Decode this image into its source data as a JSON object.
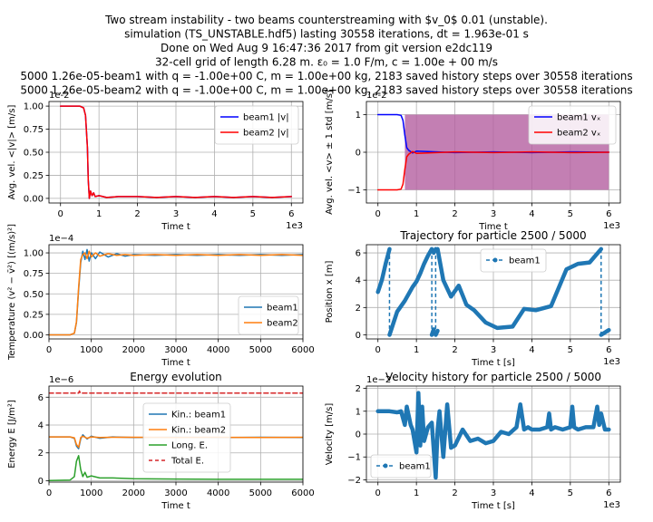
{
  "suptitle": [
    "Two stream instability - two beams counterstreaming with $v_0$ 0.01 (unstable).",
    "simulation (TS_UNSTABLE.hdf5) lasting 30558 iterations, dt = 1.963e-01 s",
    "Done on Wed Aug  9 16:47:36 2017 from git version e2dc119",
    "32-cell grid of length 6.28 m. ε₀ = 1.0 F/m, c = 1.00e + 00 m/s",
    "5000 1.26e-05-beam1 with q = -1.00e+00 C, m = 1.00e+00 kg, 2183 saved history steps over 30558 iterations",
    "5000 1.26e-05-beam2 with q = -1.00e+00 C, m = 1.00e+00 kg, 2183 saved history steps over 30558 iterations"
  ],
  "colors": {
    "beam1_line": "#0000ff",
    "beam2_line": "#ff0000",
    "tab_blue": "#1f77b4",
    "tab_orange": "#ff7f0e",
    "tab_green": "#2ca02c",
    "tab_red": "#d62728",
    "band_purple": "#b45fa0",
    "grid": "#b0b0b0"
  },
  "chart_data": [
    {
      "id": "p1",
      "type": "line",
      "title": "",
      "xlabel": "Time t",
      "ylabel": "Avg. vel. <|v|> [m/s]",
      "offset_y": "1e-2",
      "offset_x": "1e3",
      "xlim": [
        -0.3,
        6.3
      ],
      "ylim": [
        -0.05,
        1.05
      ],
      "xticks": [
        0,
        1,
        2,
        3,
        4,
        5,
        6
      ],
      "yticks": [
        0.0,
        0.25,
        0.5,
        0.75,
        1.0
      ],
      "ytick_labels": [
        "0.00",
        "0.25",
        "0.50",
        "0.75",
        "1.00"
      ],
      "grid": true,
      "legend": "top-right",
      "series": [
        {
          "name": "beam1 |v|",
          "color": "#0000ff",
          "x": [
            0,
            0.5,
            0.6,
            0.65,
            0.7,
            0.72,
            0.75,
            0.78,
            0.82,
            0.86,
            0.9,
            1.0,
            1.2,
            1.5,
            2.0,
            2.5,
            3.0,
            3.5,
            4.0,
            4.5,
            5.0,
            5.5,
            6.0
          ],
          "y": [
            1.0,
            1.0,
            0.98,
            0.9,
            0.55,
            0.2,
            0.0,
            0.08,
            0.03,
            0.06,
            0.02,
            0.03,
            0.01,
            0.02,
            0.02,
            0.01,
            0.02,
            0.01,
            0.02,
            0.01,
            0.02,
            0.01,
            0.02
          ]
        },
        {
          "name": "beam2 |v|",
          "color": "#ff0000",
          "x": [
            0,
            0.5,
            0.6,
            0.65,
            0.7,
            0.72,
            0.75,
            0.78,
            0.82,
            0.86,
            0.9,
            1.0,
            1.2,
            1.5,
            2.0,
            2.5,
            3.0,
            3.5,
            4.0,
            4.5,
            5.0,
            5.5,
            6.0
          ],
          "y": [
            1.0,
            1.0,
            0.98,
            0.9,
            0.55,
            0.2,
            0.0,
            0.08,
            0.03,
            0.06,
            0.02,
            0.03,
            0.01,
            0.02,
            0.02,
            0.01,
            0.02,
            0.01,
            0.02,
            0.01,
            0.02,
            0.01,
            0.02
          ]
        }
      ]
    },
    {
      "id": "p2",
      "type": "line",
      "title": "",
      "xlabel": "Time t",
      "ylabel": "Avg. vel. <v> ± 1 std [m/s]",
      "offset_y": "1e-2",
      "offset_x": "1e3",
      "xlim": [
        -0.3,
        6.3
      ],
      "ylim": [
        -1.35,
        1.35
      ],
      "xticks": [
        0,
        1,
        2,
        3,
        4,
        5,
        6
      ],
      "yticks": [
        -1,
        0,
        1
      ],
      "ytick_labels": [
        "−1",
        "0",
        "1"
      ],
      "grid": true,
      "legend": "top-right",
      "band": {
        "x": [
          0.7,
          6.0
        ],
        "lower": -1.0,
        "upper": 1.0
      },
      "series": [
        {
          "name": "beam1 vₓ",
          "color": "#0000ff",
          "x": [
            0,
            0.5,
            0.6,
            0.65,
            0.7,
            0.75,
            0.8,
            0.9,
            1.0,
            2.0,
            3.0,
            4.0,
            5.0,
            6.0
          ],
          "y": [
            1.0,
            1.0,
            0.98,
            0.85,
            0.45,
            0.12,
            0.05,
            -0.02,
            0.03,
            -0.01,
            0.01,
            -0.01,
            0.01,
            0.0
          ]
        },
        {
          "name": "beam2 vₓ",
          "color": "#ff0000",
          "x": [
            0,
            0.5,
            0.6,
            0.65,
            0.7,
            0.75,
            0.8,
            0.9,
            1.0,
            2.0,
            3.0,
            4.0,
            5.0,
            6.0
          ],
          "y": [
            -1.0,
            -1.0,
            -0.98,
            -0.85,
            -0.45,
            -0.12,
            -0.05,
            0.02,
            -0.03,
            0.01,
            -0.01,
            0.01,
            -0.01,
            0.0
          ]
        }
      ]
    },
    {
      "id": "p3",
      "type": "line",
      "title": "",
      "xlabel": "Time t",
      "ylabel": "Temperature (v² − v̄²) [(m/s)²]",
      "offset_y": "1e−4",
      "offset_x": "",
      "xlim": [
        0,
        6000
      ],
      "ylim": [
        -0.05,
        1.1
      ],
      "xticks": [
        0,
        1000,
        2000,
        3000,
        4000,
        5000,
        6000
      ],
      "yticks": [
        0.0,
        0.25,
        0.5,
        0.75,
        1.0
      ],
      "ytick_labels": [
        "0.00",
        "0.25",
        "0.50",
        "0.75",
        "1.00"
      ],
      "grid": true,
      "legend": "bottom-right",
      "series": [
        {
          "name": "beam1",
          "color": "#1f77b4",
          "x": [
            0,
            500,
            600,
            650,
            700,
            750,
            800,
            850,
            900,
            950,
            1000,
            1100,
            1200,
            1400,
            1600,
            1800,
            2000,
            2500,
            3000,
            3500,
            4000,
            4500,
            5000,
            5500,
            6000
          ],
          "y": [
            0,
            0,
            0.02,
            0.15,
            0.55,
            0.88,
            1.02,
            0.92,
            1.04,
            0.9,
            1.0,
            0.93,
            1.01,
            0.95,
            0.99,
            0.96,
            0.98,
            0.97,
            0.98,
            0.97,
            0.98,
            0.97,
            0.98,
            0.97,
            0.98
          ]
        },
        {
          "name": "beam2",
          "color": "#ff7f0e",
          "x": [
            0,
            500,
            600,
            650,
            700,
            750,
            800,
            850,
            900,
            950,
            1000,
            1100,
            1200,
            1400,
            1600,
            1800,
            2000,
            2500,
            3000,
            3500,
            4000,
            4500,
            5000,
            5500,
            6000
          ],
          "y": [
            0,
            0,
            0.02,
            0.16,
            0.58,
            0.92,
            0.98,
            1.0,
            0.93,
            1.02,
            0.95,
            1.0,
            0.96,
            0.99,
            0.97,
            0.98,
            0.97,
            0.98,
            0.97,
            0.98,
            0.97,
            0.98,
            0.97,
            0.98,
            0.97
          ]
        }
      ]
    },
    {
      "id": "p4",
      "type": "line",
      "title": "Trajectory for particle 2500 / 5000",
      "xlabel": "Time t [s]",
      "ylabel": "Position x [m]",
      "offset_y": "",
      "offset_x": "1e3",
      "xlim": [
        -0.3,
        6.3
      ],
      "ylim": [
        -0.3,
        6.6
      ],
      "xticks": [
        0,
        1,
        2,
        3,
        4,
        5,
        6
      ],
      "yticks": [
        0,
        2,
        4,
        6
      ],
      "ytick_labels": [
        "0",
        "2",
        "4",
        "6"
      ],
      "grid": true,
      "legend": "top-center",
      "series": [
        {
          "name": "beam1",
          "color": "#1f77b4",
          "segments": [
            {
              "x": [
                0,
                0.1,
                0.2,
                0.3
              ],
              "y": [
                3.14,
                4.0,
                5.2,
                6.28
              ]
            },
            {
              "x": [
                0.3,
                0.5,
                0.7,
                0.9,
                1.0,
                1.1,
                1.2,
                1.3,
                1.4
              ],
              "y": [
                0.0,
                1.7,
                2.5,
                3.5,
                3.9,
                4.5,
                5.2,
                5.8,
                6.28
              ]
            },
            {
              "x": [
                1.4,
                1.45
              ],
              "y": [
                0.0,
                0.4
              ]
            },
            {
              "x": [
                1.45,
                1.5
              ],
              "y": [
                6.0,
                6.28
              ]
            },
            {
              "x": [
                1.5,
                1.55
              ],
              "y": [
                0.0,
                0.3
              ]
            },
            {
              "x": [
                1.55,
                1.7,
                1.9,
                2.1,
                2.3,
                2.5,
                2.8,
                3.1,
                3.5,
                3.8,
                4.1,
                4.5,
                4.9,
                5.2,
                5.5,
                5.8
              ],
              "y": [
                6.28,
                4.0,
                2.8,
                3.6,
                2.2,
                1.8,
                0.9,
                0.5,
                0.6,
                1.9,
                1.8,
                2.1,
                4.8,
                5.2,
                5.3,
                6.28
              ]
            },
            {
              "x": [
                5.8,
                6.0
              ],
              "y": [
                0.0,
                0.35
              ]
            }
          ],
          "jumps": [
            {
              "x": 0.3,
              "y0": 6.28,
              "y1": 0.0
            },
            {
              "x": 1.4,
              "y0": 6.28,
              "y1": 0.0
            },
            {
              "x": 1.5,
              "y0": 6.28,
              "y1": 0.0
            },
            {
              "x": 5.8,
              "y0": 6.28,
              "y1": 0.0
            }
          ]
        }
      ]
    },
    {
      "id": "p5",
      "type": "line",
      "title": "Energy evolution",
      "xlabel": "Time t",
      "ylabel": "Energy E [J/m²]",
      "offset_y": "1e−6",
      "offset_x": "",
      "xlim": [
        0,
        6000
      ],
      "ylim": [
        -0.1,
        6.8
      ],
      "xticks": [
        0,
        1000,
        2000,
        3000,
        4000,
        5000,
        6000
      ],
      "yticks": [
        0,
        2,
        4,
        6
      ],
      "ytick_labels": [
        "0",
        "2",
        "4",
        "6"
      ],
      "grid": true,
      "legend": "center",
      "series": [
        {
          "name": "Kin.: beam1",
          "color": "#1f77b4",
          "x": [
            0,
            500,
            600,
            650,
            700,
            750,
            800,
            900,
            1000,
            1200,
            1500,
            2000,
            3000,
            4000,
            5000,
            6000
          ],
          "y": [
            3.15,
            3.15,
            3.05,
            2.5,
            2.3,
            3.0,
            3.3,
            3.0,
            3.2,
            3.05,
            3.15,
            3.1,
            3.12,
            3.1,
            3.12,
            3.1
          ]
        },
        {
          "name": "Kin.: beam2",
          "color": "#ff7f0e",
          "x": [
            0,
            500,
            600,
            650,
            700,
            750,
            800,
            900,
            1000,
            1200,
            1500,
            2000,
            3000,
            4000,
            5000,
            6000
          ],
          "y": [
            3.15,
            3.15,
            3.08,
            2.6,
            2.4,
            3.1,
            3.2,
            3.05,
            3.15,
            3.1,
            3.12,
            3.12,
            3.1,
            3.12,
            3.1,
            3.12
          ]
        },
        {
          "name": "Long. E.",
          "color": "#2ca02c",
          "x": [
            0,
            500,
            600,
            650,
            700,
            750,
            800,
            850,
            900,
            1000,
            1200,
            1500,
            2000,
            3000,
            4000,
            5000,
            6000
          ],
          "y": [
            0.02,
            0.05,
            0.3,
            1.4,
            1.8,
            0.8,
            0.3,
            0.6,
            0.25,
            0.35,
            0.2,
            0.2,
            0.15,
            0.12,
            0.1,
            0.1,
            0.1
          ]
        },
        {
          "name": "Total E.",
          "color": "#d62728",
          "dashed": true,
          "x": [
            0,
            700,
            720,
            740,
            6000
          ],
          "y": [
            6.3,
            6.3,
            6.45,
            6.3,
            6.3
          ]
        }
      ]
    },
    {
      "id": "p6",
      "type": "line",
      "title": "Velocity history for particle 2500 / 5000",
      "xlabel": "Time t [s]",
      "ylabel": "Velocity [m/s]",
      "offset_y": "1e−2",
      "offset_x": "1e3",
      "xlim": [
        -0.3,
        6.3
      ],
      "ylim": [
        -2.1,
        2.1
      ],
      "xticks": [
        0,
        1,
        2,
        3,
        4,
        5,
        6
      ],
      "yticks": [
        -2,
        -1,
        0,
        1,
        2
      ],
      "ytick_labels": [
        "−2",
        "−1",
        "0",
        "1",
        "2"
      ],
      "grid": true,
      "legend": "bottom-left",
      "series": [
        {
          "name": "beam1",
          "color": "#1f77b4",
          "x": [
            0,
            0.3,
            0.5,
            0.6,
            0.7,
            0.75,
            0.8,
            0.85,
            0.9,
            1.0,
            1.05,
            1.1,
            1.15,
            1.2,
            1.3,
            1.4,
            1.5,
            1.55,
            1.6,
            1.7,
            1.8,
            1.9,
            2.0,
            2.2,
            2.4,
            2.6,
            2.8,
            3.0,
            3.2,
            3.4,
            3.6,
            3.7,
            3.8,
            3.9,
            4.0,
            4.2,
            4.4,
            4.45,
            4.5,
            4.6,
            4.8,
            5.0,
            5.05,
            5.1,
            5.2,
            5.4,
            5.6,
            5.7,
            5.75,
            5.8,
            5.9,
            6.0
          ],
          "y": [
            1.0,
            1.0,
            0.95,
            1.0,
            0.4,
            1.2,
            0.8,
            0.4,
            0.2,
            -0.8,
            1.8,
            -0.5,
            1.2,
            -0.3,
            0.3,
            0.5,
            -1.9,
            0.2,
            1.0,
            -1.0,
            1.3,
            -0.6,
            -0.5,
            0.2,
            -0.3,
            -0.2,
            -0.4,
            -0.3,
            0.1,
            0.0,
            0.3,
            1.3,
            0.2,
            0.3,
            0.2,
            0.2,
            0.3,
            0.9,
            0.2,
            0.3,
            0.2,
            0.3,
            1.2,
            0.3,
            0.2,
            0.3,
            0.3,
            1.2,
            0.4,
            0.9,
            0.2,
            0.2
          ]
        }
      ]
    }
  ]
}
